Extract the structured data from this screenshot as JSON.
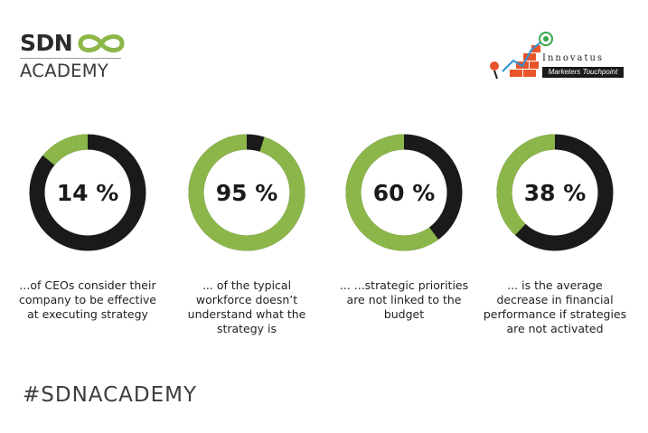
{
  "header": {
    "brand": "SDN",
    "brand_sub": "ACADEMY",
    "partner_name": "Innovatus",
    "partner_tagline": "Marketers Touchpoint"
  },
  "colors": {
    "fill": "#8cb649",
    "track": "#1a1a1a"
  },
  "chart_data": {
    "type": "pie",
    "variant": "donut",
    "values": [
      14,
      95,
      60,
      38
    ],
    "labels": [
      "14 %",
      "95 %",
      "60 %",
      "38 %"
    ],
    "captions": [
      "...of CEOs consider their company to be effective at executing strategy",
      "... of the typical workforce doesn’t understand what the strategy is",
      "... ...strategic priorities are not linked to the budget",
      "... is the average decrease in financial performance if strategies are not activated"
    ]
  },
  "stats": [
    {
      "label": "14 %",
      "caption_lines": [
        "...of CEOs consider their",
        "company to be effective",
        "at executing strategy"
      ]
    },
    {
      "label": "95 %",
      "caption_lines": [
        "... of the typical",
        "workforce doesn’t",
        "understand what the",
        "strategy is"
      ]
    },
    {
      "label": "60 %",
      "caption_lines": [
        "... ...strategic priorities",
        "are not linked to the",
        "budget"
      ]
    },
    {
      "label": "38 %",
      "caption_lines": [
        "... is the average",
        "decrease in financial",
        "performance if strategies",
        "are not activated"
      ]
    }
  ],
  "footer": {
    "hashtag": "#SDNACADEMY"
  }
}
